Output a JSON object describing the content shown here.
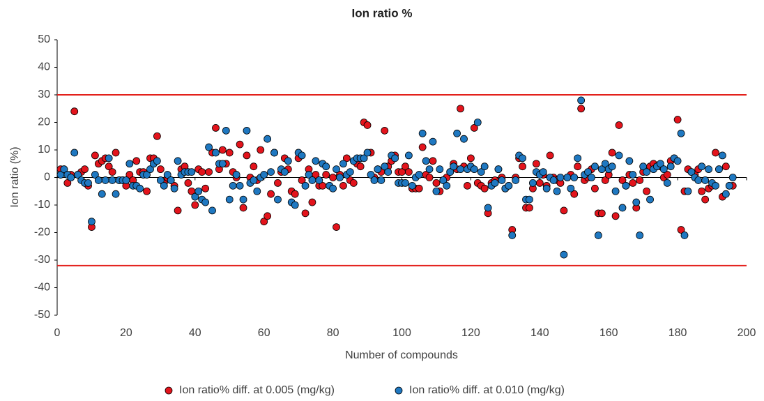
{
  "chart_data": {
    "type": "scatter",
    "title": "Ion ratio %",
    "x_label": "Number of compounds",
    "y_label": "Ion ratio (%)",
    "xlim": [
      0,
      200
    ],
    "xticks": [
      0,
      20,
      40,
      60,
      80,
      100,
      120,
      140,
      160,
      180,
      200
    ],
    "ylim": [
      -50,
      50
    ],
    "yticks": [
      -50,
      -40,
      -30,
      -20,
      -10,
      0,
      10,
      20,
      30,
      40,
      50
    ],
    "grid": false,
    "legend": "bottom",
    "zero_line": true,
    "ref_lines": [
      30,
      -32
    ],
    "ref_line_color": "#e3201b",
    "x": [
      1,
      2,
      3,
      4,
      5,
      6,
      7,
      8,
      9,
      10,
      11,
      12,
      13,
      14,
      15,
      16,
      17,
      18,
      19,
      20,
      21,
      22,
      23,
      24,
      25,
      26,
      27,
      28,
      29,
      30,
      31,
      32,
      33,
      34,
      35,
      36,
      37,
      38,
      39,
      40,
      41,
      42,
      43,
      44,
      45,
      46,
      47,
      48,
      49,
      50,
      51,
      52,
      53,
      54,
      55,
      56,
      57,
      58,
      59,
      60,
      61,
      62,
      63,
      64,
      65,
      66,
      67,
      68,
      69,
      70,
      71,
      72,
      73,
      74,
      75,
      76,
      77,
      78,
      79,
      80,
      81,
      82,
      83,
      84,
      85,
      86,
      87,
      88,
      89,
      90,
      91,
      92,
      93,
      94,
      95,
      96,
      97,
      98,
      99,
      100,
      101,
      102,
      103,
      104,
      105,
      106,
      107,
      108,
      109,
      110,
      111,
      112,
      113,
      114,
      115,
      116,
      117,
      118,
      119,
      120,
      121,
      122,
      123,
      124,
      125,
      126,
      127,
      128,
      129,
      130,
      131,
      132,
      133,
      134,
      135,
      136,
      137,
      138,
      139,
      140,
      141,
      142,
      143,
      144,
      145,
      146,
      147,
      148,
      149,
      150,
      151,
      152,
      153,
      154,
      155,
      156,
      157,
      158,
      159,
      160,
      161,
      162,
      163,
      164,
      165,
      166,
      167,
      168,
      169,
      170,
      171,
      172,
      173,
      174,
      175,
      176,
      177,
      178,
      179,
      180,
      181,
      182,
      183,
      184,
      185,
      186,
      187,
      188,
      189,
      190,
      191,
      192,
      193,
      194,
      195,
      196
    ],
    "series": [
      {
        "name": "Ion ratio% diff. at 0.005 (mg/kg)",
        "color": "#e3141c",
        "values": [
          3,
          3,
          -2,
          1,
          24,
          1,
          2,
          3,
          -3,
          -18,
          8,
          5,
          6,
          7,
          4,
          2,
          9,
          -1,
          -1,
          -3,
          1,
          -1,
          6,
          2,
          2,
          -5,
          7,
          7,
          15,
          3,
          -2,
          0,
          -1,
          -3,
          -12,
          3,
          4,
          -2,
          -5,
          -10,
          3,
          2,
          -4,
          2,
          9,
          18,
          3,
          10,
          5,
          9,
          2,
          0,
          12,
          -11,
          8,
          0,
          4,
          -1,
          10,
          -16,
          -14,
          -6,
          9,
          -2,
          2,
          7,
          3,
          -5,
          -6,
          7,
          -1,
          -13,
          3,
          -9,
          1,
          -3,
          -3,
          1,
          -3,
          0,
          -18,
          1,
          -3,
          7,
          -1,
          -2,
          5,
          4,
          20,
          19,
          9,
          0,
          3,
          2,
          17,
          4,
          6,
          8,
          2,
          2,
          4,
          2,
          -4,
          -4,
          -4,
          11,
          1,
          0,
          6,
          -2,
          -5,
          -1,
          0,
          2,
          5,
          3,
          25,
          4,
          -3,
          7,
          18,
          -2,
          -3,
          -4,
          -13,
          -2,
          -1,
          3,
          0,
          -4,
          -3,
          -19,
          0,
          7,
          4,
          -11,
          -11,
          -4,
          5,
          -2,
          1,
          -3,
          8,
          0,
          -1,
          -2,
          -12,
          0,
          1,
          -6,
          4,
          25,
          -1,
          0,
          3,
          -4,
          -13,
          -13,
          -1,
          1,
          9,
          -14,
          19,
          -1,
          -3,
          1,
          -2,
          -11,
          -1,
          2,
          -5,
          4,
          5,
          4,
          4,
          0,
          1,
          6,
          7,
          21,
          -19,
          -5,
          3,
          2,
          1,
          3,
          -5,
          -8,
          -4,
          -3,
          9,
          3,
          -7,
          4,
          -3,
          -3
        ]
      },
      {
        "name": "Ion ratio% diff. at 0.010 (mg/kg)",
        "color": "#1f78c1",
        "values": [
          1,
          3,
          1,
          0,
          9,
          1,
          -1,
          -2,
          -2,
          -16,
          1,
          -1,
          -6,
          -1,
          7,
          -1,
          -6,
          -1,
          -1,
          -1,
          5,
          -3,
          -3,
          -4,
          1,
          1,
          3,
          5,
          6,
          -1,
          -3,
          1,
          -1,
          -4,
          6,
          1,
          2,
          2,
          2,
          -7,
          -5,
          -8,
          -9,
          11,
          -12,
          9,
          5,
          5,
          17,
          -8,
          -3,
          1,
          -3,
          -8,
          17,
          -2,
          -1,
          -5,
          0,
          1,
          14,
          2,
          9,
          -8,
          3,
          2,
          6,
          -9,
          -10,
          9,
          8,
          -3,
          1,
          -1,
          6,
          -1,
          5,
          4,
          -3,
          -4,
          3,
          0,
          5,
          1,
          2,
          6,
          7,
          7,
          7,
          9,
          1,
          -1,
          3,
          -1,
          4,
          2,
          8,
          7,
          -2,
          -2,
          -2,
          8,
          -3,
          0,
          1,
          16,
          6,
          3,
          13,
          -5,
          3,
          -1,
          -3,
          2,
          4,
          16,
          3,
          14,
          3,
          4,
          3,
          20,
          2,
          4,
          -11,
          -3,
          -2,
          3,
          -1,
          -4,
          -3,
          -21,
          -1,
          8,
          7,
          -8,
          -8,
          -2,
          2,
          1,
          2,
          -4,
          0,
          -1,
          -5,
          0,
          -28,
          0,
          -4,
          0,
          7,
          28,
          1,
          2,
          0,
          4,
          -21,
          3,
          5,
          3,
          4,
          -5,
          8,
          -11,
          -3,
          6,
          1,
          -9,
          -21,
          4,
          2,
          -8,
          3,
          4,
          5,
          3,
          -2,
          4,
          7,
          6,
          16,
          -21,
          -5,
          2,
          0,
          -1,
          4,
          -1,
          3,
          -2,
          -3,
          3,
          8,
          -6,
          -3,
          0
        ]
      }
    ]
  }
}
